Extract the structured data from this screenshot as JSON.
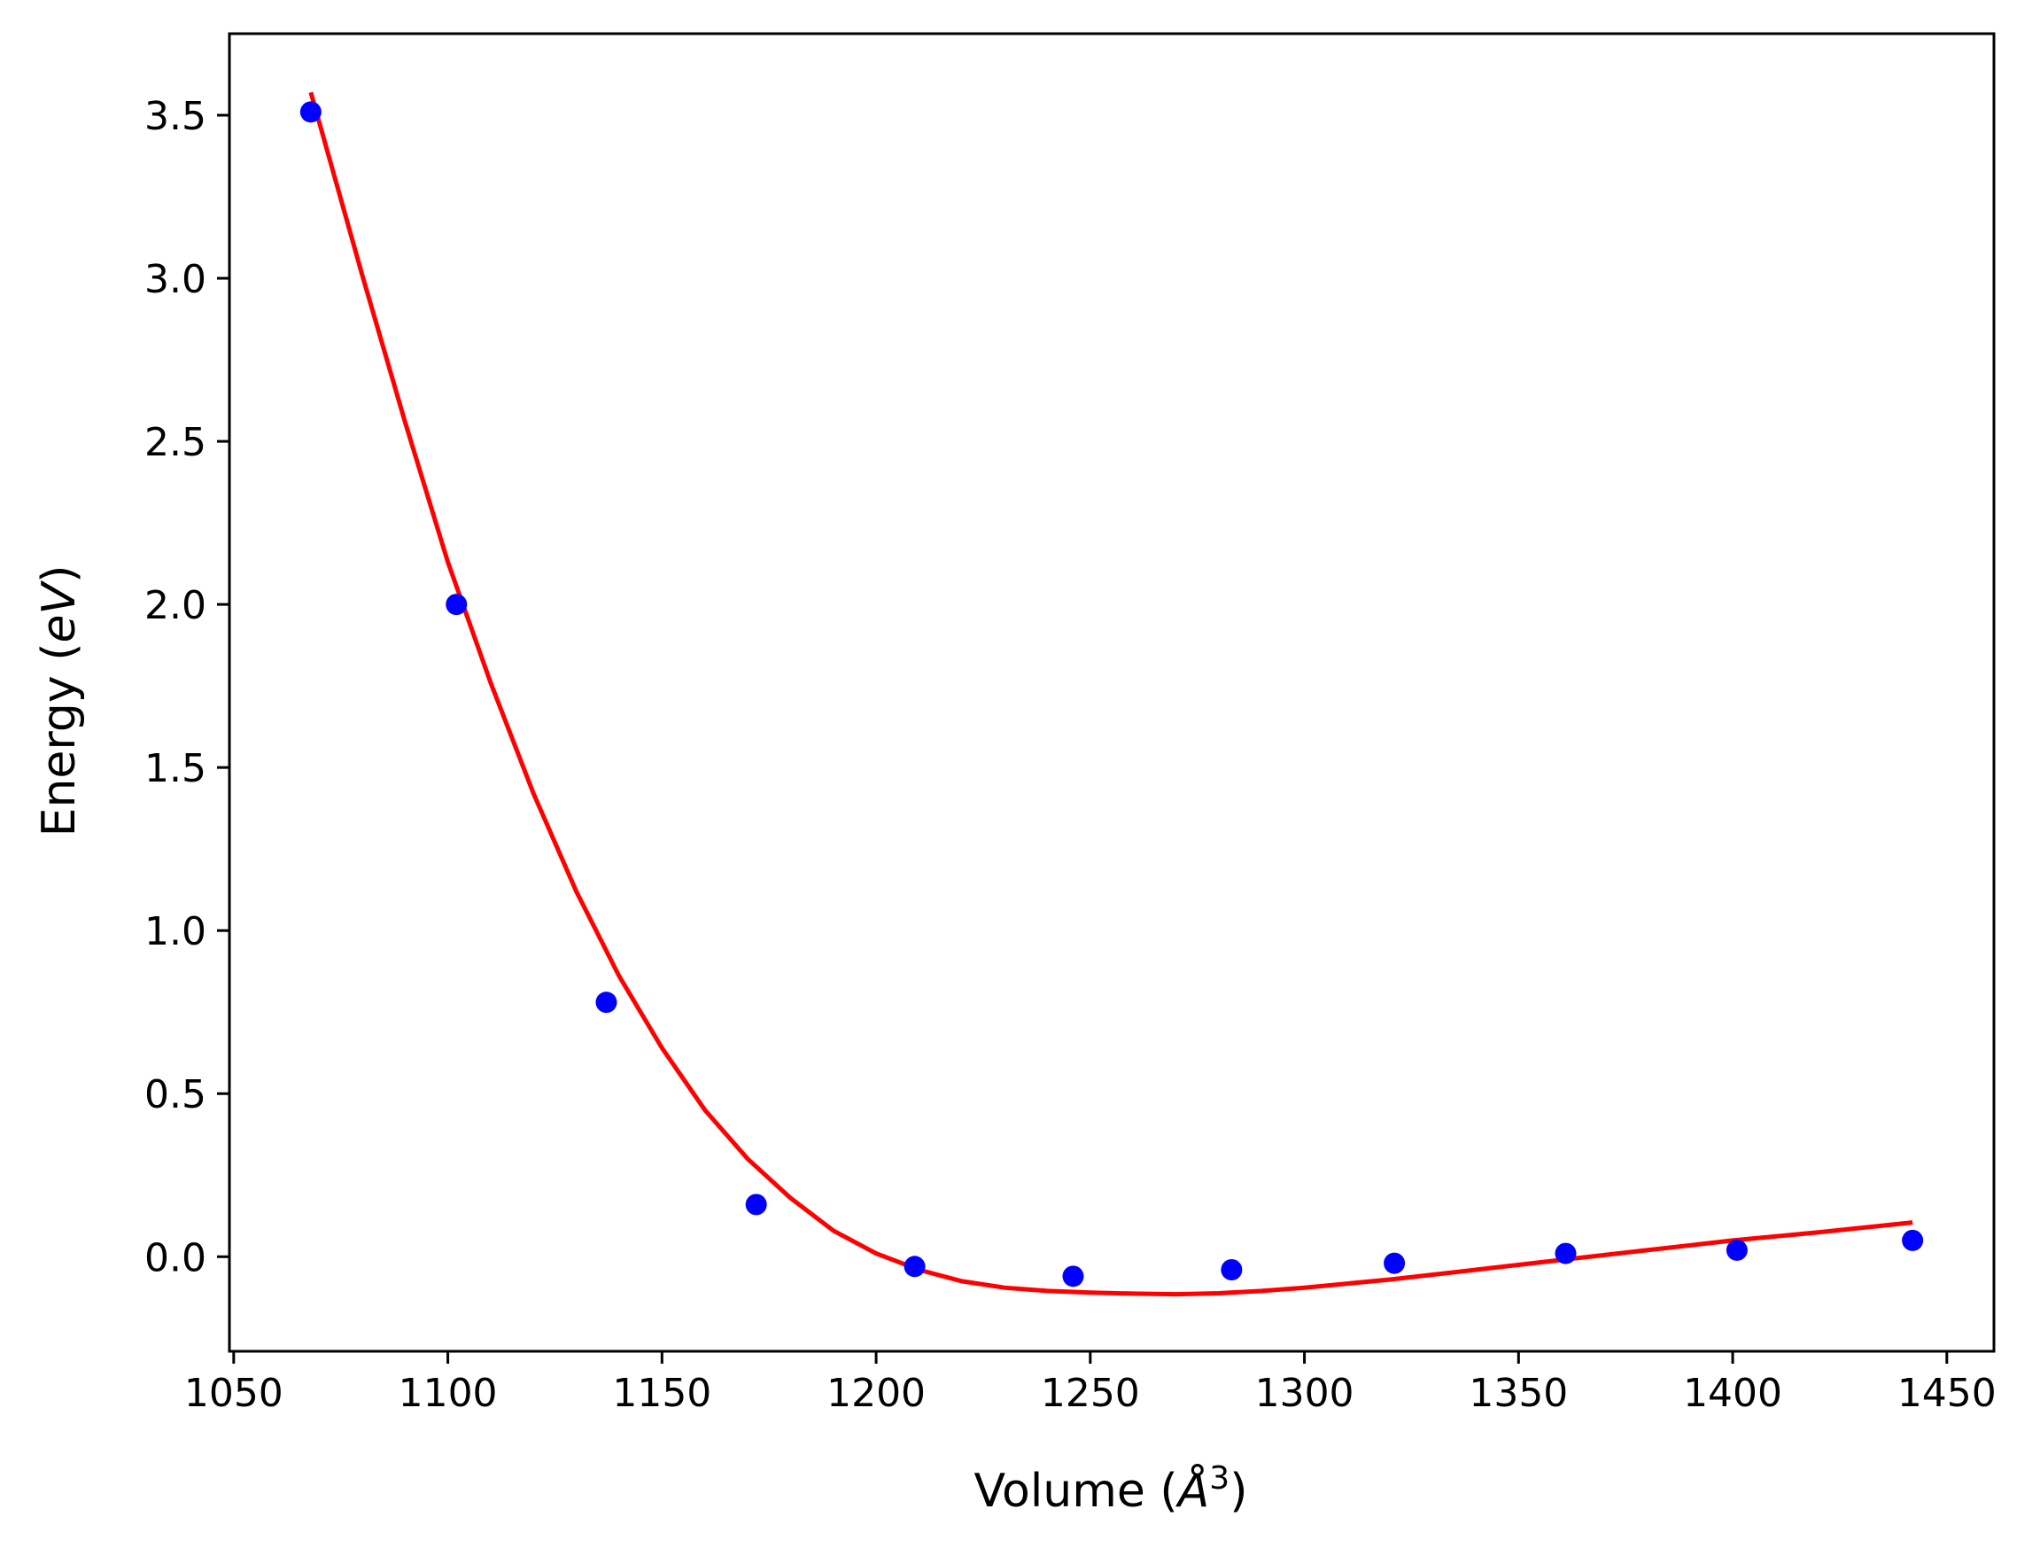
{
  "chart_data": {
    "type": "scatter",
    "title": "",
    "xlabel": "Volume (Å³)",
    "xlabel_parts": {
      "prefix": "Volume (",
      "unit_base": "Å",
      "unit_sup": "3",
      "suffix": ")"
    },
    "ylabel": "Energy (eV)",
    "ylabel_parts": {
      "prefix": "Energy (",
      "unit": "eV",
      "suffix": ")"
    },
    "xlim": [
      1049,
      1461
    ],
    "ylim": [
      -0.29,
      3.75
    ],
    "xticks": [
      1050,
      1100,
      1150,
      1200,
      1250,
      1300,
      1350,
      1400,
      1450
    ],
    "xtick_labels": [
      "1050",
      "1100",
      "1150",
      "1200",
      "1250",
      "1300",
      "1350",
      "1400",
      "1450"
    ],
    "yticks": [
      0.0,
      0.5,
      1.0,
      1.5,
      2.0,
      2.5,
      3.0,
      3.5
    ],
    "ytick_labels": [
      "0.0",
      "0.5",
      "1.0",
      "1.5",
      "2.0",
      "2.5",
      "3.0",
      "3.5"
    ],
    "grid": false,
    "series": [
      {
        "kind": "scatter",
        "color": "#0000ff",
        "x": [
          1068,
          1102,
          1137,
          1172,
          1209,
          1246,
          1283,
          1321,
          1361,
          1401,
          1442
        ],
        "y": [
          3.51,
          2.0,
          0.78,
          0.16,
          -0.03,
          -0.06,
          -0.04,
          -0.02,
          0.01,
          0.02,
          0.05
        ]
      },
      {
        "kind": "line",
        "color": "#ff0000",
        "x": [
          1068,
          1080,
          1090,
          1100,
          1110,
          1120,
          1130,
          1140,
          1150,
          1160,
          1170,
          1180,
          1190,
          1200,
          1210,
          1220,
          1230,
          1240,
          1250,
          1260,
          1270,
          1280,
          1290,
          1300,
          1320,
          1340,
          1360,
          1380,
          1400,
          1420,
          1442
        ],
        "y": [
          3.57,
          3.01,
          2.56,
          2.13,
          1.76,
          1.42,
          1.12,
          0.86,
          0.64,
          0.45,
          0.3,
          0.18,
          0.08,
          0.01,
          -0.04,
          -0.075,
          -0.095,
          -0.105,
          -0.11,
          -0.113,
          -0.115,
          -0.112,
          -0.105,
          -0.095,
          -0.07,
          -0.04,
          -0.01,
          0.02,
          0.05,
          0.075,
          0.105
        ]
      }
    ]
  }
}
